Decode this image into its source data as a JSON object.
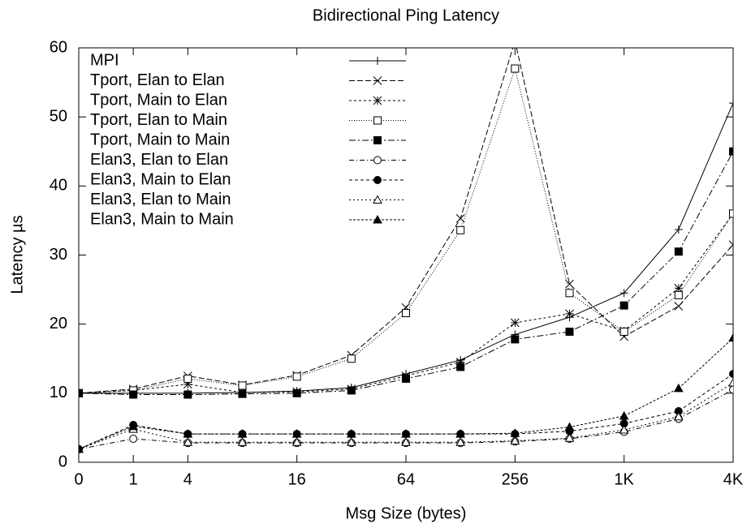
{
  "chart_data": {
    "type": "line",
    "title": "Bidirectional Ping Latency",
    "x_label": "Msg Size (bytes)",
    "y_label": "Latency µs",
    "categories": [
      "0",
      "1",
      "4",
      null,
      "16",
      null,
      "64",
      null,
      "256",
      null,
      "1K",
      null,
      "4K"
    ],
    "ylim": [
      0,
      60
    ],
    "yticks": [
      0,
      10,
      20,
      30,
      40,
      50,
      60
    ],
    "grid": false,
    "legend": "upper left",
    "series": [
      {
        "name": "MPI",
        "color": "#000000",
        "dash": "",
        "marker": "plus",
        "values": [
          10,
          10,
          10,
          10.1,
          10.3,
          10.8,
          12.8,
          14.8,
          18.5,
          21,
          24.5,
          33.7,
          52
        ]
      },
      {
        "name": "Tport, Elan to Elan",
        "color": "#000000",
        "dash": "7 3",
        "marker": "cross",
        "values": [
          10,
          10.6,
          12.5,
          11.2,
          12.6,
          15.5,
          22.4,
          35.3,
          61,
          25.8,
          18.2,
          22.6,
          31.5
        ]
      },
      {
        "name": "Tport, Main to Elan",
        "color": "#000000",
        "dash": "3 3",
        "marker": "star",
        "values": [
          10,
          10.4,
          11.3,
          10.1,
          10.2,
          10.6,
          12.5,
          14.5,
          20.2,
          21.5,
          19,
          25.2,
          36
        ]
      },
      {
        "name": "Tport, Elan to Main",
        "color": "#000000",
        "dash": "1 2",
        "marker": "square",
        "values": [
          10,
          10.4,
          12.1,
          11.1,
          12.4,
          15,
          21.6,
          33.6,
          57,
          24.5,
          18.9,
          24.2,
          36
        ]
      },
      {
        "name": "Tport, Main to Main",
        "color": "#000000",
        "dash": "8 3 2 3",
        "marker": "filled-square",
        "values": [
          10,
          9.8,
          9.8,
          9.9,
          10,
          10.4,
          12.1,
          13.8,
          17.8,
          18.9,
          22.7,
          30.5,
          45
        ]
      },
      {
        "name": "Elan3, Elan to Elan",
        "color": "#000000",
        "dash": "6 3 1 3",
        "marker": "circle",
        "values": [
          1.9,
          3.4,
          2.8,
          2.8,
          2.8,
          2.8,
          2.8,
          2.8,
          3,
          3.4,
          4.4,
          6.3,
          10.5
        ]
      },
      {
        "name": "Elan3, Main to Elan",
        "color": "#000000",
        "dash": "4 3",
        "marker": "filled-circle",
        "values": [
          1.9,
          5.4,
          4.1,
          4.1,
          4.1,
          4.1,
          4.1,
          4.1,
          4.1,
          4.5,
          5.6,
          7.4,
          12.8
        ]
      },
      {
        "name": "Elan3, Elan to Main",
        "color": "#000000",
        "dash": "2 3",
        "marker": "triangle",
        "values": [
          1.9,
          4.8,
          2.9,
          2.9,
          2.9,
          2.9,
          2.9,
          2.9,
          3.1,
          3.5,
          4.7,
          6.6,
          11.5
        ]
      },
      {
        "name": "Elan3, Main to Main",
        "color": "#000000",
        "dash": "3 2",
        "marker": "filled-triangle",
        "values": [
          1.9,
          5.2,
          4.1,
          4.1,
          4.1,
          4.1,
          4.1,
          4.1,
          4.2,
          5.1,
          6.7,
          10.7,
          18
        ]
      }
    ]
  }
}
